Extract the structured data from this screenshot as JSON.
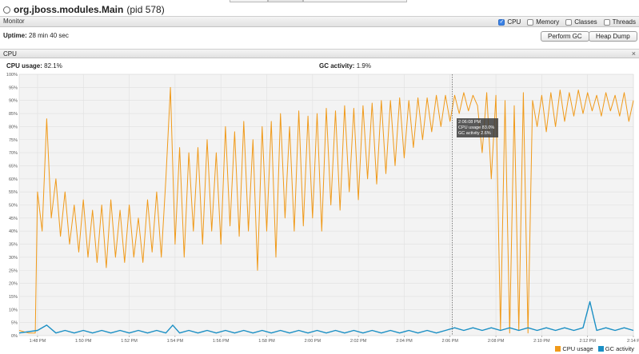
{
  "window": {
    "process_name": "org.jboss.modules.Main",
    "pid_text": "(pid 578)"
  },
  "monitor": {
    "label": "Monitor",
    "options": [
      {
        "label": "CPU",
        "checked": true
      },
      {
        "label": "Memory",
        "checked": false
      },
      {
        "label": "Classes",
        "checked": false
      },
      {
        "label": "Threads",
        "checked": false
      }
    ],
    "uptime_label": "Uptime:",
    "uptime_value": "28 min 40 sec",
    "perform_gc_label": "Perform GC",
    "heap_dump_label": "Heap Dump"
  },
  "cpu_panel": {
    "label": "CPU",
    "close_glyph": "×",
    "cpu_usage_label": "CPU usage:",
    "cpu_usage_value": "82.1%",
    "gc_activity_label": "GC activity:",
    "gc_activity_value": "1.9%"
  },
  "tooltip": {
    "time": "2:06:08 PM",
    "cpu_label": "CPU usage",
    "cpu_value": "83.0%",
    "gc_label": "GC activity",
    "gc_value": "2.6%"
  },
  "colors": {
    "cpu": "#f09a1a",
    "gc": "#1a8fc4"
  },
  "chart_data": {
    "type": "line",
    "y_ticks": [
      "0%",
      "5%",
      "10%",
      "15%",
      "20%",
      "25%",
      "30%",
      "35%",
      "40%",
      "45%",
      "50%",
      "55%",
      "60%",
      "65%",
      "70%",
      "75%",
      "80%",
      "85%",
      "90%",
      "95%",
      "100%"
    ],
    "ylim": [
      0,
      100
    ],
    "x_ticks": [
      "1:48 PM",
      "1:50 PM",
      "1:52 PM",
      "1:54 PM",
      "1:56 PM",
      "1:58 PM",
      "2:00 PM",
      "2:02 PM",
      "2:04 PM",
      "2:06 PM",
      "2:08 PM",
      "2:10 PM",
      "2:12 PM",
      "2:14 P"
    ],
    "x_tick_minutes": [
      0,
      2,
      4,
      6,
      8,
      10,
      12,
      14,
      16,
      18,
      20,
      22,
      24,
      26
    ],
    "xlim_minutes": [
      -0.8,
      26.0
    ],
    "cursor_minute": 18.1,
    "legend": [
      "CPU usage",
      "GC activity"
    ],
    "series": [
      {
        "name": "CPU usage",
        "values": [
          [
            -0.8,
            2
          ],
          [
            -0.4,
            1
          ],
          [
            -0.1,
            1
          ],
          [
            0.0,
            55
          ],
          [
            0.2,
            40
          ],
          [
            0.4,
            83
          ],
          [
            0.6,
            45
          ],
          [
            0.8,
            60
          ],
          [
            1.0,
            38
          ],
          [
            1.2,
            55
          ],
          [
            1.4,
            35
          ],
          [
            1.6,
            50
          ],
          [
            1.8,
            32
          ],
          [
            2.0,
            52
          ],
          [
            2.2,
            30
          ],
          [
            2.4,
            48
          ],
          [
            2.6,
            28
          ],
          [
            2.8,
            50
          ],
          [
            3.0,
            26
          ],
          [
            3.2,
            52
          ],
          [
            3.4,
            30
          ],
          [
            3.6,
            48
          ],
          [
            3.8,
            28
          ],
          [
            4.0,
            50
          ],
          [
            4.2,
            30
          ],
          [
            4.4,
            45
          ],
          [
            4.6,
            28
          ],
          [
            4.8,
            52
          ],
          [
            5.0,
            32
          ],
          [
            5.2,
            55
          ],
          [
            5.4,
            30
          ],
          [
            5.6,
            60
          ],
          [
            5.8,
            95
          ],
          [
            6.0,
            35
          ],
          [
            6.2,
            72
          ],
          [
            6.4,
            30
          ],
          [
            6.6,
            70
          ],
          [
            6.8,
            40
          ],
          [
            7.0,
            72
          ],
          [
            7.2,
            35
          ],
          [
            7.4,
            75
          ],
          [
            7.6,
            40
          ],
          [
            7.8,
            70
          ],
          [
            8.0,
            35
          ],
          [
            8.2,
            80
          ],
          [
            8.4,
            42
          ],
          [
            8.6,
            78
          ],
          [
            8.8,
            38
          ],
          [
            9.0,
            82
          ],
          [
            9.2,
            40
          ],
          [
            9.4,
            75
          ],
          [
            9.6,
            25
          ],
          [
            9.8,
            80
          ],
          [
            10.0,
            40
          ],
          [
            10.2,
            82
          ],
          [
            10.4,
            30
          ],
          [
            10.6,
            85
          ],
          [
            10.8,
            45
          ],
          [
            11.0,
            80
          ],
          [
            11.2,
            40
          ],
          [
            11.4,
            86
          ],
          [
            11.6,
            42
          ],
          [
            11.8,
            84
          ],
          [
            12.0,
            45
          ],
          [
            12.2,
            85
          ],
          [
            12.4,
            40
          ],
          [
            12.6,
            87
          ],
          [
            12.8,
            50
          ],
          [
            13.0,
            86
          ],
          [
            13.2,
            48
          ],
          [
            13.4,
            88
          ],
          [
            13.6,
            55
          ],
          [
            13.8,
            87
          ],
          [
            14.0,
            52
          ],
          [
            14.2,
            88
          ],
          [
            14.4,
            60
          ],
          [
            14.6,
            89
          ],
          [
            14.8,
            58
          ],
          [
            15.0,
            90
          ],
          [
            15.2,
            62
          ],
          [
            15.4,
            90
          ],
          [
            15.6,
            65
          ],
          [
            15.8,
            91
          ],
          [
            16.0,
            68
          ],
          [
            16.2,
            90
          ],
          [
            16.4,
            72
          ],
          [
            16.6,
            91
          ],
          [
            16.8,
            75
          ],
          [
            17.0,
            91
          ],
          [
            17.2,
            78
          ],
          [
            17.4,
            92
          ],
          [
            17.6,
            80
          ],
          [
            17.8,
            92
          ],
          [
            18.0,
            82
          ],
          [
            18.2,
            92
          ],
          [
            18.4,
            85
          ],
          [
            18.6,
            93
          ],
          [
            18.8,
            86
          ],
          [
            19.0,
            92
          ],
          [
            19.2,
            88
          ],
          [
            19.4,
            70
          ],
          [
            19.6,
            93
          ],
          [
            19.8,
            60
          ],
          [
            20.0,
            92
          ],
          [
            20.2,
            2
          ],
          [
            20.4,
            90
          ],
          [
            20.6,
            1
          ],
          [
            20.8,
            88
          ],
          [
            21.0,
            2
          ],
          [
            21.2,
            93
          ],
          [
            21.4,
            1
          ],
          [
            21.6,
            90
          ],
          [
            21.8,
            80
          ],
          [
            22.0,
            92
          ],
          [
            22.2,
            78
          ],
          [
            22.4,
            93
          ],
          [
            22.6,
            80
          ],
          [
            22.8,
            94
          ],
          [
            23.0,
            82
          ],
          [
            23.2,
            93
          ],
          [
            23.4,
            84
          ],
          [
            23.6,
            94
          ],
          [
            23.8,
            85
          ],
          [
            24.0,
            93
          ],
          [
            24.2,
            86
          ],
          [
            24.4,
            92
          ],
          [
            24.6,
            84
          ],
          [
            24.8,
            93
          ],
          [
            25.0,
            86
          ],
          [
            25.2,
            92
          ],
          [
            25.4,
            84
          ],
          [
            25.6,
            93
          ],
          [
            25.8,
            82
          ],
          [
            26.0,
            90
          ]
        ]
      },
      {
        "name": "GC activity",
        "values": [
          [
            -0.8,
            1
          ],
          [
            0.0,
            2
          ],
          [
            0.4,
            4
          ],
          [
            0.8,
            1
          ],
          [
            1.2,
            2
          ],
          [
            1.6,
            1
          ],
          [
            2.0,
            2
          ],
          [
            2.4,
            1
          ],
          [
            2.8,
            2
          ],
          [
            3.2,
            1
          ],
          [
            3.6,
            2
          ],
          [
            4.0,
            1
          ],
          [
            4.4,
            2
          ],
          [
            4.8,
            1
          ],
          [
            5.2,
            2
          ],
          [
            5.6,
            1
          ],
          [
            5.9,
            4
          ],
          [
            6.2,
            1
          ],
          [
            6.6,
            2
          ],
          [
            7.0,
            1
          ],
          [
            7.4,
            2
          ],
          [
            7.8,
            1
          ],
          [
            8.2,
            2
          ],
          [
            8.6,
            1
          ],
          [
            9.0,
            2
          ],
          [
            9.4,
            1
          ],
          [
            9.8,
            2
          ],
          [
            10.2,
            1
          ],
          [
            10.6,
            2
          ],
          [
            11.0,
            1
          ],
          [
            11.4,
            2
          ],
          [
            11.8,
            1
          ],
          [
            12.2,
            2
          ],
          [
            12.6,
            1
          ],
          [
            13.0,
            2
          ],
          [
            13.4,
            1
          ],
          [
            13.8,
            2
          ],
          [
            14.2,
            1
          ],
          [
            14.6,
            2
          ],
          [
            15.0,
            1
          ],
          [
            15.4,
            2
          ],
          [
            15.8,
            1
          ],
          [
            16.2,
            2
          ],
          [
            16.6,
            1
          ],
          [
            17.0,
            2
          ],
          [
            17.4,
            1
          ],
          [
            17.8,
            2
          ],
          [
            18.2,
            3
          ],
          [
            18.6,
            2
          ],
          [
            19.0,
            3
          ],
          [
            19.4,
            2
          ],
          [
            19.8,
            3
          ],
          [
            20.2,
            2
          ],
          [
            20.6,
            3
          ],
          [
            21.0,
            2
          ],
          [
            21.4,
            3
          ],
          [
            21.8,
            2
          ],
          [
            22.2,
            3
          ],
          [
            22.6,
            2
          ],
          [
            23.0,
            3
          ],
          [
            23.4,
            2
          ],
          [
            23.8,
            3
          ],
          [
            24.1,
            13
          ],
          [
            24.4,
            2
          ],
          [
            24.8,
            3
          ],
          [
            25.2,
            2
          ],
          [
            25.6,
            3
          ],
          [
            26.0,
            2
          ]
        ]
      }
    ]
  }
}
